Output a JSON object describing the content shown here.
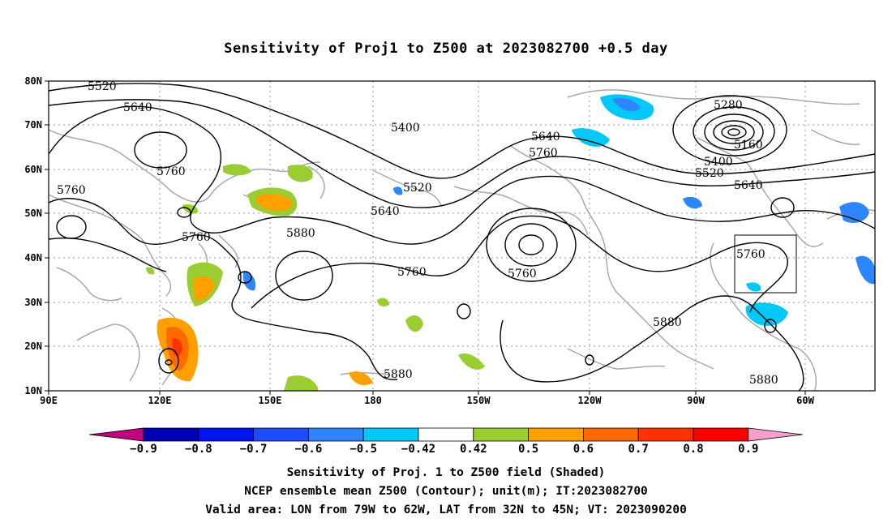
{
  "title": "Sensitivity of Proj1 to Z500 at 2023082700 +0.5 day",
  "lat_labels": [
    "80N",
    "70N",
    "60N",
    "50N",
    "40N",
    "30N",
    "20N",
    "10N"
  ],
  "lon_labels": [
    "90E",
    "120E",
    "150E",
    "180",
    "150W",
    "120W",
    "90W",
    "60W"
  ],
  "contour_labels": [
    {
      "text": "5520",
      "id": "c1"
    },
    {
      "text": "5640",
      "id": "c2"
    },
    {
      "text": "5760",
      "id": "c3"
    },
    {
      "text": "5760",
      "id": "c4"
    },
    {
      "text": "5760",
      "id": "c5"
    },
    {
      "text": "5880",
      "id": "c6"
    },
    {
      "text": "5400",
      "id": "c7"
    },
    {
      "text": "5520",
      "id": "c8"
    },
    {
      "text": "5640",
      "id": "c9"
    },
    {
      "text": "5760",
      "id": "c10"
    },
    {
      "text": "5640",
      "id": "c11"
    },
    {
      "text": "5760",
      "id": "c12"
    },
    {
      "text": "5760",
      "id": "c13"
    },
    {
      "text": "5880",
      "id": "c14"
    },
    {
      "text": "5880",
      "id": "c15"
    },
    {
      "text": "5280",
      "id": "c16"
    },
    {
      "text": "5160",
      "id": "c17"
    },
    {
      "text": "5400",
      "id": "c18"
    },
    {
      "text": "5520",
      "id": "c19"
    },
    {
      "text": "5640",
      "id": "c20"
    },
    {
      "text": "5760",
      "id": "c21"
    },
    {
      "text": "5880",
      "id": "c22"
    }
  ],
  "colorbar": {
    "colors": [
      "#c0007a",
      "#0000b4",
      "#0014f0",
      "#1e4cff",
      "#2e86ff",
      "#00c8f8",
      "#ffffff",
      "#9acd32",
      "#ffa000",
      "#ff6a00",
      "#ff3200",
      "#ff0000",
      "#f5a0c8"
    ],
    "labels": [
      "-0.9",
      "-0.8",
      "-0.7",
      "-0.6",
      "-0.5",
      "-0.42",
      "0.42",
      "0.5",
      "0.6",
      "0.7",
      "0.8",
      "0.9"
    ]
  },
  "caption": {
    "line1": "Sensitivity of Proj. 1 to Z500 field (Shaded)",
    "line2": "NCEP ensemble mean Z500 (Contour); unit(m); IT:2023082700",
    "line3": "Valid area: LON from 79W to 62W, LAT from 32N to 45N; VT: 2023090200"
  }
}
